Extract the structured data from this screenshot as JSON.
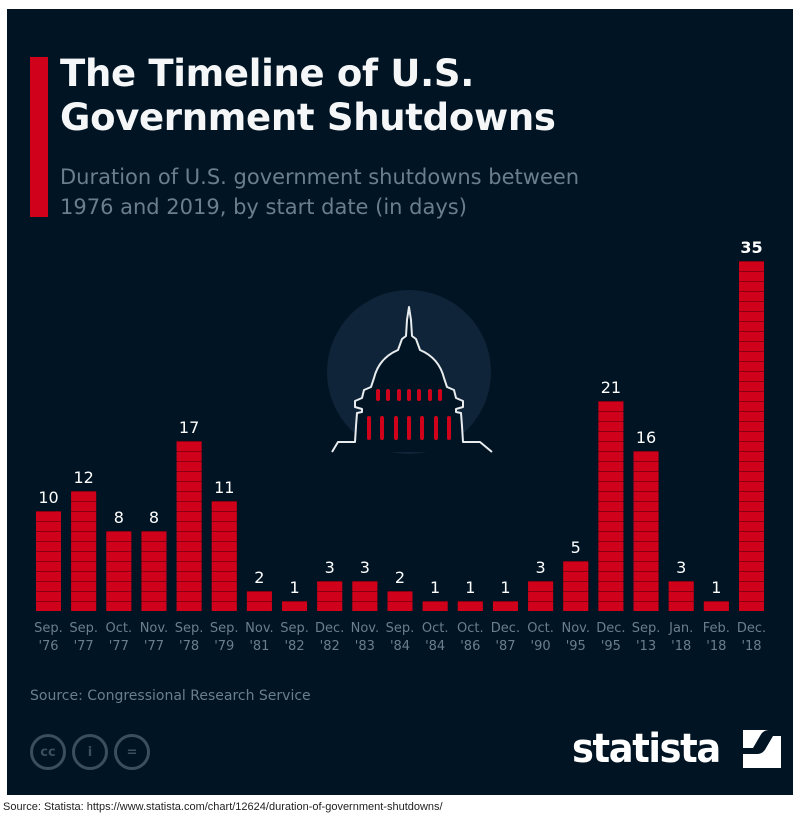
{
  "header": {
    "title_line1": "The Timeline of U.S.",
    "title_line2": "Government Shutdowns",
    "subtitle_line1": "Duration of U.S. government shutdowns between",
    "subtitle_line2": "1976 and 2019, by start date (in days)"
  },
  "colors": {
    "background": "#011423",
    "bar": "#d0021b",
    "bar_separator": "#8a0010",
    "label": "#ffffff",
    "axis_text": "#6b7e8d",
    "moon": "#0f2438"
  },
  "chart_data": {
    "type": "bar",
    "title": "The Timeline of U.S. Government Shutdowns",
    "subtitle": "Duration of U.S. government shutdowns between 1976 and 2019, by start date (in days)",
    "xlabel": "",
    "ylabel": "Days",
    "ylim": [
      0,
      35
    ],
    "grid": false,
    "categories": [
      [
        "Sep.",
        "'76"
      ],
      [
        "Sep.",
        "'77"
      ],
      [
        "Oct.",
        "'77"
      ],
      [
        "Nov.",
        "'77"
      ],
      [
        "Sep.",
        "'78"
      ],
      [
        "Sep.",
        "'79"
      ],
      [
        "Nov.",
        "'81"
      ],
      [
        "Sep.",
        "'82"
      ],
      [
        "Dec.",
        "'82"
      ],
      [
        "Nov.",
        "'83"
      ],
      [
        "Sep.",
        "'84"
      ],
      [
        "Oct.",
        "'84"
      ],
      [
        "Oct.",
        "'86"
      ],
      [
        "Dec.",
        "'87"
      ],
      [
        "Oct.",
        "'90"
      ],
      [
        "Nov.",
        "'95"
      ],
      [
        "Dec.",
        "'95"
      ],
      [
        "Sep.",
        "'13"
      ],
      [
        "Jan.",
        "'18"
      ],
      [
        "Feb.",
        "'18"
      ],
      [
        "Dec.",
        "'18"
      ]
    ],
    "values": [
      10,
      12,
      8,
      8,
      17,
      11,
      2,
      1,
      3,
      3,
      2,
      1,
      1,
      1,
      3,
      5,
      21,
      16,
      3,
      1,
      35
    ],
    "highlight_index": 20
  },
  "footer": {
    "source": "Source: Congressional Research Service",
    "cc_icons": [
      "cc-icon",
      "attribution-icon",
      "no-derivatives-icon"
    ],
    "cc_labels": [
      "cc",
      "i",
      "="
    ],
    "brand": "statista",
    "page_source": "Source: Statista: https://www.statista.com/chart/12624/duration-of-government-shutdowns/"
  }
}
